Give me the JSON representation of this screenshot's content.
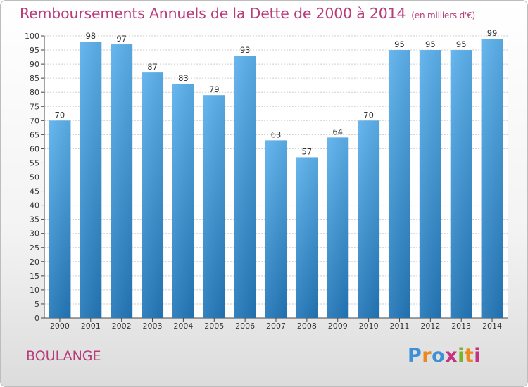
{
  "chart_data": {
    "type": "bar",
    "title": "Remboursements Annuels de la Dette de 2000 à 2014",
    "subtitle": "(en milliers d'€)",
    "categories": [
      "2000",
      "2001",
      "2002",
      "2003",
      "2004",
      "2005",
      "2006",
      "2007",
      "2008",
      "2009",
      "2010",
      "2011",
      "2012",
      "2013",
      "2014"
    ],
    "values": [
      70,
      98,
      97,
      87,
      83,
      79,
      93,
      63,
      57,
      64,
      70,
      95,
      95,
      95,
      99
    ],
    "ylim": [
      0,
      100
    ],
    "ytick_step": 5,
    "grid": true,
    "xlabel": "",
    "ylabel": "",
    "bar_color": "#3a8fd8"
  },
  "footer": {
    "town": "BOULANGE",
    "logo_letters": [
      "P",
      "r",
      "o",
      "x",
      "i",
      "t",
      "i"
    ],
    "logo_colors": [
      "#3d8fd6",
      "#e88a1e",
      "#3d8fd6",
      "#c5327f",
      "#7ab42f",
      "#e88a1e",
      "#c5327f"
    ]
  },
  "colors": {
    "title": "#b83c7a",
    "grid": "#cfcfcf"
  }
}
